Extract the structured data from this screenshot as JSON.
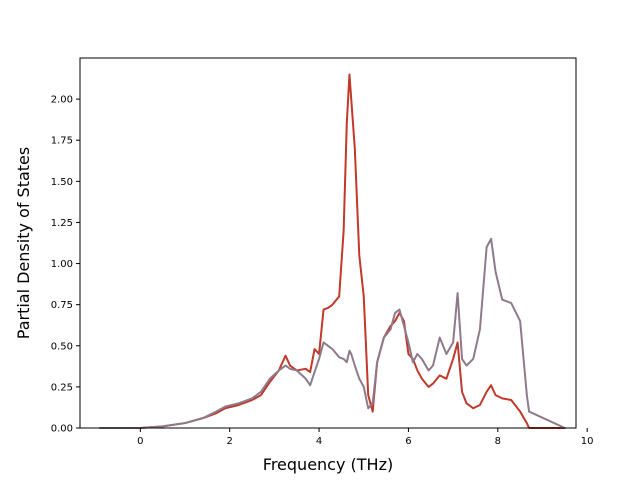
{
  "chart_data": {
    "type": "line",
    "title": "",
    "xlabel": "Frequency (THz)",
    "ylabel": "Partial Density of States",
    "xlim": [
      -1.35,
      9.75
    ],
    "ylim": [
      0.0,
      2.25
    ],
    "xticks": [
      0,
      2,
      4,
      6,
      8,
      10
    ],
    "xtick_labels": [
      "0",
      "2",
      "4",
      "6",
      "8",
      "10"
    ],
    "yticks": [
      0.0,
      0.25,
      0.5,
      0.75,
      1.0,
      1.25,
      1.5,
      1.75,
      2.0
    ],
    "ytick_labels": [
      "0.00",
      "0.25",
      "0.50",
      "0.75",
      "1.00",
      "1.25",
      "1.50",
      "1.75",
      "2.00"
    ],
    "grid": false,
    "legend": "none",
    "series": [
      {
        "color": "#c0392b",
        "x": [
          -0.9,
          0.0,
          0.5,
          1.0,
          1.4,
          1.7,
          1.9,
          2.2,
          2.5,
          2.7,
          2.9,
          3.1,
          3.25,
          3.35,
          3.5,
          3.7,
          3.8,
          3.9,
          4.0,
          4.1,
          4.2,
          4.3,
          4.45,
          4.55,
          4.62,
          4.68,
          4.72,
          4.8,
          4.9,
          5.0,
          5.1,
          5.2,
          5.3,
          5.45,
          5.6,
          5.7,
          5.8,
          5.9,
          6.0,
          6.1,
          6.2,
          6.3,
          6.45,
          6.55,
          6.7,
          6.85,
          7.0,
          7.1,
          7.2,
          7.3,
          7.45,
          7.6,
          7.75,
          7.85,
          7.95,
          8.1,
          8.3,
          8.5,
          8.65,
          8.7,
          9.5
        ],
        "y": [
          0.0,
          0.0,
          0.01,
          0.03,
          0.06,
          0.09,
          0.12,
          0.14,
          0.17,
          0.2,
          0.28,
          0.35,
          0.44,
          0.38,
          0.35,
          0.36,
          0.34,
          0.48,
          0.45,
          0.72,
          0.73,
          0.75,
          0.8,
          1.2,
          1.85,
          2.15,
          2.0,
          1.7,
          1.05,
          0.8,
          0.2,
          0.1,
          0.4,
          0.55,
          0.62,
          0.65,
          0.7,
          0.65,
          0.45,
          0.42,
          0.35,
          0.3,
          0.25,
          0.27,
          0.32,
          0.3,
          0.42,
          0.52,
          0.22,
          0.15,
          0.12,
          0.14,
          0.22,
          0.26,
          0.2,
          0.18,
          0.17,
          0.1,
          0.03,
          0.0,
          0.0
        ]
      },
      {
        "color": "#8e7a8a",
        "x": [
          -0.9,
          0.0,
          0.5,
          1.0,
          1.4,
          1.7,
          1.9,
          2.2,
          2.5,
          2.7,
          2.9,
          3.1,
          3.25,
          3.35,
          3.5,
          3.7,
          3.8,
          3.9,
          4.0,
          4.1,
          4.2,
          4.3,
          4.45,
          4.55,
          4.62,
          4.68,
          4.72,
          4.8,
          4.9,
          5.0,
          5.1,
          5.2,
          5.3,
          5.45,
          5.6,
          5.7,
          5.8,
          5.9,
          6.0,
          6.1,
          6.2,
          6.3,
          6.45,
          6.55,
          6.7,
          6.85,
          7.0,
          7.1,
          7.2,
          7.3,
          7.45,
          7.6,
          7.75,
          7.85,
          7.95,
          8.1,
          8.3,
          8.5,
          8.65,
          8.7,
          9.5
        ],
        "y": [
          0.0,
          0.0,
          0.01,
          0.03,
          0.06,
          0.1,
          0.13,
          0.15,
          0.18,
          0.22,
          0.3,
          0.35,
          0.38,
          0.36,
          0.35,
          0.3,
          0.26,
          0.34,
          0.42,
          0.52,
          0.5,
          0.48,
          0.43,
          0.42,
          0.4,
          0.47,
          0.45,
          0.38,
          0.3,
          0.25,
          0.12,
          0.15,
          0.4,
          0.55,
          0.6,
          0.7,
          0.72,
          0.62,
          0.52,
          0.4,
          0.45,
          0.42,
          0.35,
          0.38,
          0.55,
          0.45,
          0.52,
          0.82,
          0.42,
          0.38,
          0.42,
          0.6,
          1.1,
          1.15,
          0.95,
          0.78,
          0.76,
          0.65,
          0.2,
          0.1,
          0.0
        ]
      }
    ]
  }
}
